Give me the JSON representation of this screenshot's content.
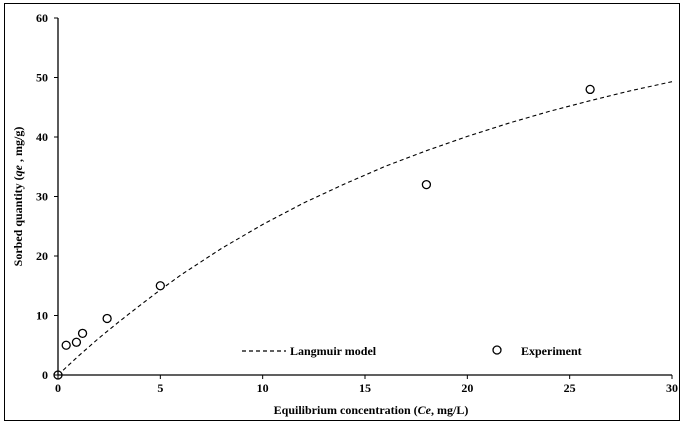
{
  "chart_data": {
    "type": "scatter",
    "xlabel_parts": [
      "Equilibrium  concentration (",
      "Ce",
      ", mg/L)"
    ],
    "ylabel_parts": [
      "Sorbed quantity (",
      "qe",
      " , mg/g)"
    ],
    "xlim": [
      0,
      30
    ],
    "ylim": [
      0,
      60
    ],
    "xticks": [
      "0",
      "5",
      "10",
      "15",
      "20",
      "25",
      "30"
    ],
    "yticks": [
      "0",
      "10",
      "20",
      "30",
      "40",
      "50",
      "60"
    ],
    "grid": false,
    "legend_position": "bottom",
    "series": [
      {
        "name": "Experiment",
        "kind": "markers",
        "marker": "open-circle",
        "x": [
          0,
          0.4,
          0.9,
          1.2,
          2.4,
          5.0,
          18.0,
          26.0
        ],
        "y": [
          0,
          5.0,
          5.5,
          7.0,
          9.5,
          15.0,
          32.0,
          48.0
        ]
      },
      {
        "name": "Langmuir model",
        "kind": "dashed-line",
        "x": [
          0,
          0.5,
          1,
          2,
          3,
          4,
          5,
          6,
          8,
          10,
          12,
          14,
          16,
          18,
          20,
          22,
          24,
          26,
          28,
          30
        ],
        "y": [
          0,
          1.6,
          3.2,
          6.2,
          9.0,
          11.7,
          14.3,
          16.8,
          21.3,
          25.3,
          28.9,
          32.1,
          35.1,
          37.7,
          40.1,
          42.3,
          44.3,
          46.1,
          47.8,
          49.3
        ]
      }
    ]
  }
}
